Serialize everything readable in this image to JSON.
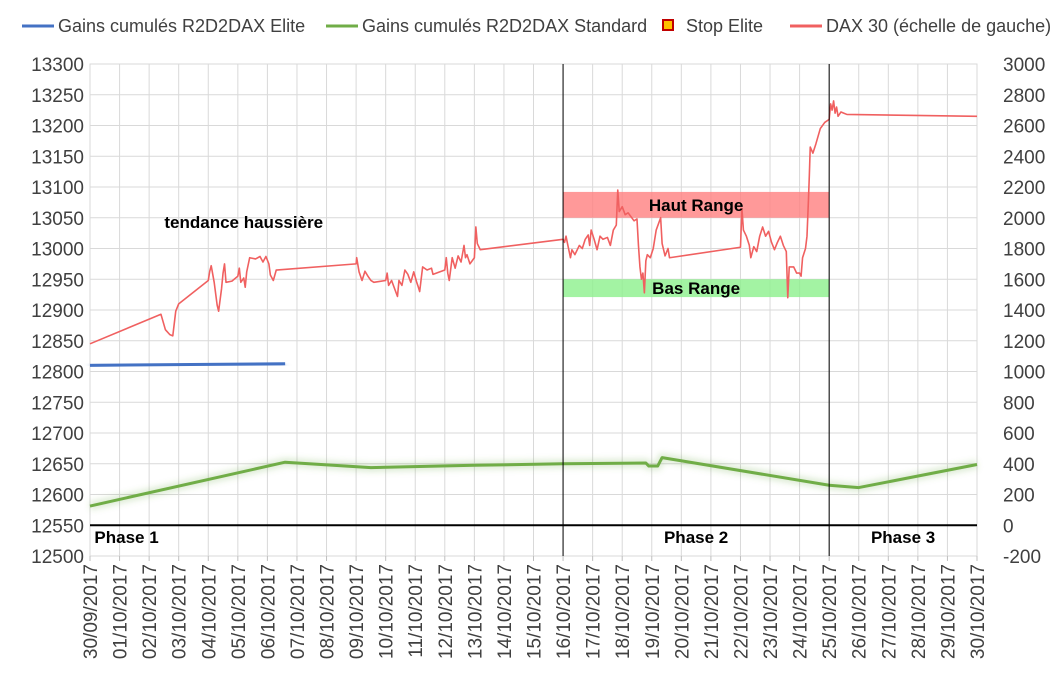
{
  "chart_data": {
    "type": "line",
    "title": "",
    "xlabel": "",
    "ylabel": "",
    "dates": [
      "30/09/2017",
      "01/10/2017",
      "02/10/2017",
      "03/10/2017",
      "04/10/2017",
      "05/10/2017",
      "06/10/2017",
      "07/10/2017",
      "08/10/2017",
      "09/10/2017",
      "10/10/2017",
      "11/10/2017",
      "12/10/2017",
      "13/10/2017",
      "14/10/2017",
      "15/10/2017",
      "16/10/2017",
      "17/10/2017",
      "18/10/2017",
      "19/10/2017",
      "20/10/2017",
      "21/10/2017",
      "22/10/2017",
      "23/10/2017",
      "24/10/2017",
      "25/10/2017",
      "26/10/2017",
      "27/10/2017",
      "28/10/2017",
      "29/10/2017",
      "30/10/2017"
    ],
    "y_left": {
      "min": 12500,
      "max": 13300,
      "step": 50
    },
    "y_right": {
      "min": -200,
      "max": 3000,
      "step": 200
    },
    "grid": true,
    "legend": {
      "placement": "top"
    },
    "legend_items": [
      {
        "label": "Gains cumulés R2D2DAX Elite",
        "color": "#4472C4",
        "marker": "line"
      },
      {
        "label": "Gains cumulés R2D2DAX Standard",
        "color": "#70AD47",
        "marker": "line"
      },
      {
        "label": "Stop Elite",
        "color": "#C00000",
        "fill": "#FFC000",
        "marker": "square"
      },
      {
        "label": "DAX 30 (échelle de gauche)",
        "color": "#F06060",
        "marker": "line"
      }
    ],
    "series": [
      {
        "name": "DAX 30 (échelle de gauche)",
        "axis": "left",
        "color": "#F06060",
        "points": [
          [
            0,
            12845
          ],
          [
            2.4,
            12893
          ],
          [
            2.55,
            12868
          ],
          [
            2.7,
            12860
          ],
          [
            2.8,
            12858
          ],
          [
            2.9,
            12898
          ],
          [
            3.0,
            12910
          ],
          [
            4.0,
            12948
          ],
          [
            4.05,
            12963
          ],
          [
            4.1,
            12972
          ],
          [
            4.2,
            12945
          ],
          [
            4.3,
            12908
          ],
          [
            4.35,
            12898
          ],
          [
            4.45,
            12935
          ],
          [
            4.5,
            12960
          ],
          [
            4.55,
            12975
          ],
          [
            4.6,
            12945
          ],
          [
            4.8,
            12947
          ],
          [
            5.0,
            12955
          ],
          [
            5.05,
            12968
          ],
          [
            5.1,
            12945
          ],
          [
            5.2,
            12952
          ],
          [
            5.25,
            12937
          ],
          [
            5.3,
            12962
          ],
          [
            5.4,
            12985
          ],
          [
            5.6,
            12983
          ],
          [
            5.75,
            12987
          ],
          [
            5.85,
            12978
          ],
          [
            5.95,
            12987
          ],
          [
            6.05,
            12975
          ],
          [
            6.1,
            12957
          ],
          [
            6.2,
            12948
          ],
          [
            6.3,
            12965
          ],
          [
            9.0,
            12975
          ],
          [
            9.02,
            12985
          ],
          [
            9.1,
            12962
          ],
          [
            9.2,
            12948
          ],
          [
            9.3,
            12963
          ],
          [
            9.4,
            12955
          ],
          [
            9.5,
            12948
          ],
          [
            9.6,
            12945
          ],
          [
            10.0,
            12948
          ],
          [
            10.05,
            12960
          ],
          [
            10.1,
            12940
          ],
          [
            10.2,
            12948
          ],
          [
            10.3,
            12935
          ],
          [
            10.4,
            12922
          ],
          [
            10.45,
            12948
          ],
          [
            10.55,
            12940
          ],
          [
            10.65,
            12965
          ],
          [
            10.75,
            12958
          ],
          [
            10.85,
            12945
          ],
          [
            10.95,
            12962
          ],
          [
            11.05,
            12945
          ],
          [
            11.1,
            12938
          ],
          [
            11.15,
            12930
          ],
          [
            11.25,
            12970
          ],
          [
            11.4,
            12965
          ],
          [
            11.55,
            12968
          ],
          [
            11.6,
            12958
          ],
          [
            12.0,
            12965
          ],
          [
            12.05,
            12985
          ],
          [
            12.1,
            12960
          ],
          [
            12.15,
            12948
          ],
          [
            12.25,
            12985
          ],
          [
            12.35,
            12968
          ],
          [
            12.45,
            12988
          ],
          [
            12.55,
            12978
          ],
          [
            12.65,
            13005
          ],
          [
            12.7,
            12985
          ],
          [
            12.75,
            12990
          ],
          [
            12.85,
            12975
          ],
          [
            13.0,
            12985
          ],
          [
            13.05,
            13035
          ],
          [
            13.1,
            13008
          ],
          [
            13.2,
            12998
          ],
          [
            16.0,
            13015
          ],
          [
            16.05,
            13010
          ],
          [
            16.1,
            13020
          ],
          [
            16.15,
            13008
          ],
          [
            16.25,
            12985
          ],
          [
            16.3,
            12998
          ],
          [
            16.4,
            12990
          ],
          [
            16.55,
            13005
          ],
          [
            16.65,
            13000
          ],
          [
            16.75,
            13015
          ],
          [
            16.85,
            13022
          ],
          [
            16.9,
            13005
          ],
          [
            16.95,
            13030
          ],
          [
            17.05,
            13015
          ],
          [
            17.15,
            12998
          ],
          [
            17.25,
            13020
          ],
          [
            17.35,
            13015
          ],
          [
            17.5,
            13018
          ],
          [
            17.6,
            13005
          ],
          [
            17.7,
            13030
          ],
          [
            17.8,
            13038
          ],
          [
            17.85,
            13095
          ],
          [
            17.9,
            13060
          ],
          [
            18.0,
            13068
          ],
          [
            18.1,
            13055
          ],
          [
            18.2,
            13058
          ],
          [
            18.4,
            13045
          ],
          [
            18.5,
            13048
          ],
          [
            18.55,
            13005
          ],
          [
            18.6,
            12970
          ],
          [
            18.65,
            12950
          ],
          [
            18.7,
            12960
          ],
          [
            18.75,
            12928
          ],
          [
            18.8,
            12980
          ],
          [
            18.85,
            12990
          ],
          [
            18.95,
            12985
          ],
          [
            19.05,
            13000
          ],
          [
            19.15,
            13030
          ],
          [
            19.3,
            13050
          ],
          [
            19.35,
            13008
          ],
          [
            19.45,
            12988
          ],
          [
            19.55,
            13000
          ],
          [
            19.6,
            12985
          ],
          [
            22.0,
            13002
          ],
          [
            22.05,
            13065
          ],
          [
            22.1,
            13030
          ],
          [
            22.2,
            13020
          ],
          [
            22.3,
            13005
          ],
          [
            22.35,
            12985
          ],
          [
            22.45,
            13003
          ],
          [
            22.55,
            12995
          ],
          [
            22.65,
            13020
          ],
          [
            22.75,
            13035
          ],
          [
            22.85,
            13020
          ],
          [
            22.95,
            13028
          ],
          [
            23.05,
            13010
          ],
          [
            23.15,
            12998
          ],
          [
            23.25,
            13010
          ],
          [
            23.35,
            13020
          ],
          [
            23.45,
            13005
          ],
          [
            23.55,
            12995
          ],
          [
            23.6,
            12920
          ],
          [
            23.65,
            12970
          ],
          [
            23.8,
            12970
          ],
          [
            23.9,
            12960
          ],
          [
            24.0,
            12960
          ],
          [
            24.05,
            12955
          ],
          [
            24.1,
            12985
          ],
          [
            24.2,
            13000
          ],
          [
            24.25,
            13020
          ],
          [
            24.3,
            13080
          ],
          [
            24.33,
            13120
          ],
          [
            24.36,
            13165
          ],
          [
            24.45,
            13155
          ],
          [
            24.55,
            13170
          ],
          [
            24.7,
            13195
          ],
          [
            24.85,
            13205
          ],
          [
            25.0,
            13210
          ],
          [
            25.05,
            13235
          ],
          [
            25.1,
            13225
          ],
          [
            25.15,
            13240
          ],
          [
            25.2,
            13220
          ],
          [
            25.25,
            13230
          ],
          [
            25.3,
            13215
          ],
          [
            25.4,
            13222
          ],
          [
            25.5,
            13220
          ],
          [
            25.6,
            13218
          ],
          [
            30.0,
            13215
          ]
        ]
      },
      {
        "name": "Gains cumulés R2D2DAX Elite",
        "axis": "right",
        "color": "#4472C4",
        "points": [
          [
            0,
            1040
          ],
          [
            6.6,
            1050
          ],
          [
            6.6,
            1050
          ]
        ]
      },
      {
        "name": "Gains cumulés R2D2DAX Standard",
        "axis": "right",
        "color": "#70AD47",
        "points": [
          [
            0,
            125
          ],
          [
            6.6,
            410
          ],
          [
            9.5,
            375
          ],
          [
            13.0,
            390
          ],
          [
            16.0,
            400
          ],
          [
            18.8,
            405
          ],
          [
            18.9,
            385
          ],
          [
            19.2,
            385
          ],
          [
            19.35,
            440
          ],
          [
            25.0,
            260
          ],
          [
            26.0,
            245
          ],
          [
            30.0,
            395
          ]
        ]
      },
      {
        "name": "Stop Elite",
        "axis": "right",
        "points": []
      }
    ],
    "bands": [
      {
        "label": "Haut Range",
        "color": "#FF7F7F",
        "y_from": 13050,
        "y_to": 13092,
        "x_from": 16.0,
        "x_to": 25.0,
        "axis": "left"
      },
      {
        "label": "Bas Range",
        "color": "#8CF08C",
        "y_from": 12921,
        "y_to": 12950,
        "x_from": 16.0,
        "x_to": 25.0,
        "axis": "left"
      }
    ],
    "phases": [
      {
        "label": "Phase 1",
        "x_from": 0,
        "x_to": 16.0
      },
      {
        "label": "Phase 2",
        "x_from": 16.0,
        "x_to": 25.0
      },
      {
        "label": "Phase 3",
        "x_from": 25.0,
        "x_to": 30.0
      }
    ],
    "annotations": [
      {
        "text": "tendance haussière",
        "x": 5.2,
        "y": 13033,
        "axis": "left"
      }
    ]
  }
}
